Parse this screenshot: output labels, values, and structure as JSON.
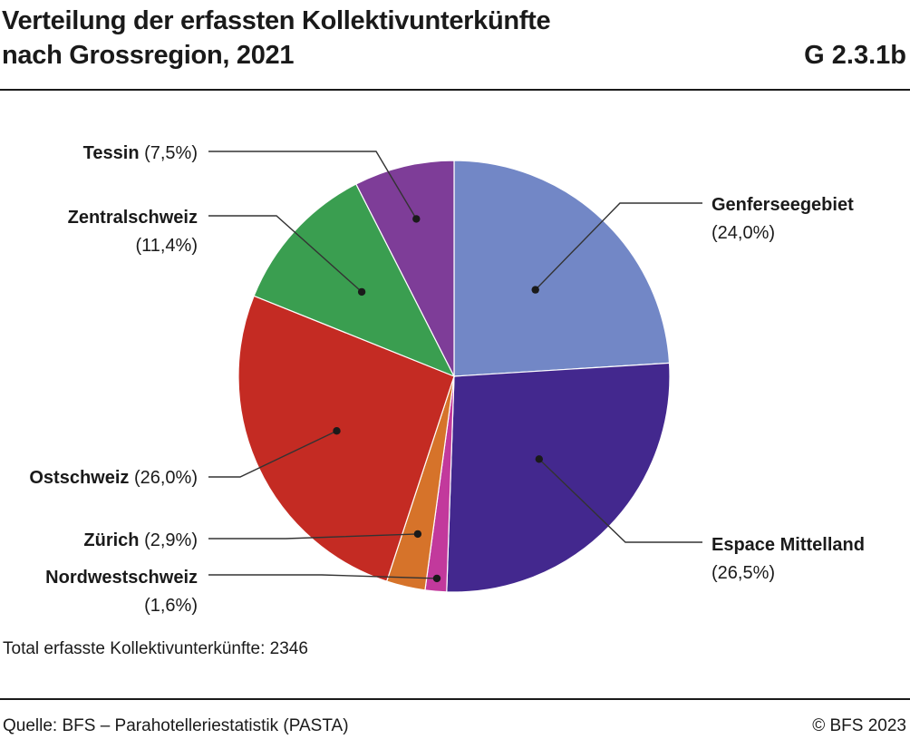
{
  "header": {
    "title_line1": "Verteilung der erfassten Kollektivunterkünfte",
    "title_line2": "nach Grossregion, 2021",
    "chart_id": "G 2.3.1b"
  },
  "chart_data": {
    "type": "pie",
    "title": "Verteilung der erfassten Kollektivunterkünfte nach Grossregion, 2021",
    "unit": "%",
    "slices": [
      {
        "label": "Genferseegebiet",
        "value": 24.0,
        "value_label": "(24,0%)",
        "color": "#7287C6"
      },
      {
        "label": "Espace Mittelland",
        "value": 26.5,
        "value_label": "(26,5%)",
        "color": "#43288E"
      },
      {
        "label": "Nordwestschweiz",
        "value": 1.6,
        "value_label": "(1,6%)",
        "color": "#C2399C"
      },
      {
        "label": "Zürich",
        "value": 2.9,
        "value_label": "(2,9%)",
        "color": "#D6732A"
      },
      {
        "label": "Ostschweiz",
        "value": 26.0,
        "value_label": "(26,0%)",
        "color": "#C42B23"
      },
      {
        "label": "Zentralschweiz",
        "value": 11.4,
        "value_label": "(11,4%)",
        "color": "#3A9E50"
      },
      {
        "label": "Tessin",
        "value": 7.5,
        "value_label": "(7,5%)",
        "color": "#7E3D98"
      }
    ]
  },
  "note": "Total erfasste Kollektivunterkünfte: 2346",
  "footer": {
    "source": "Quelle: BFS – Parahotelleriestatistik (PASTA)",
    "copyright": "© BFS 2023"
  }
}
